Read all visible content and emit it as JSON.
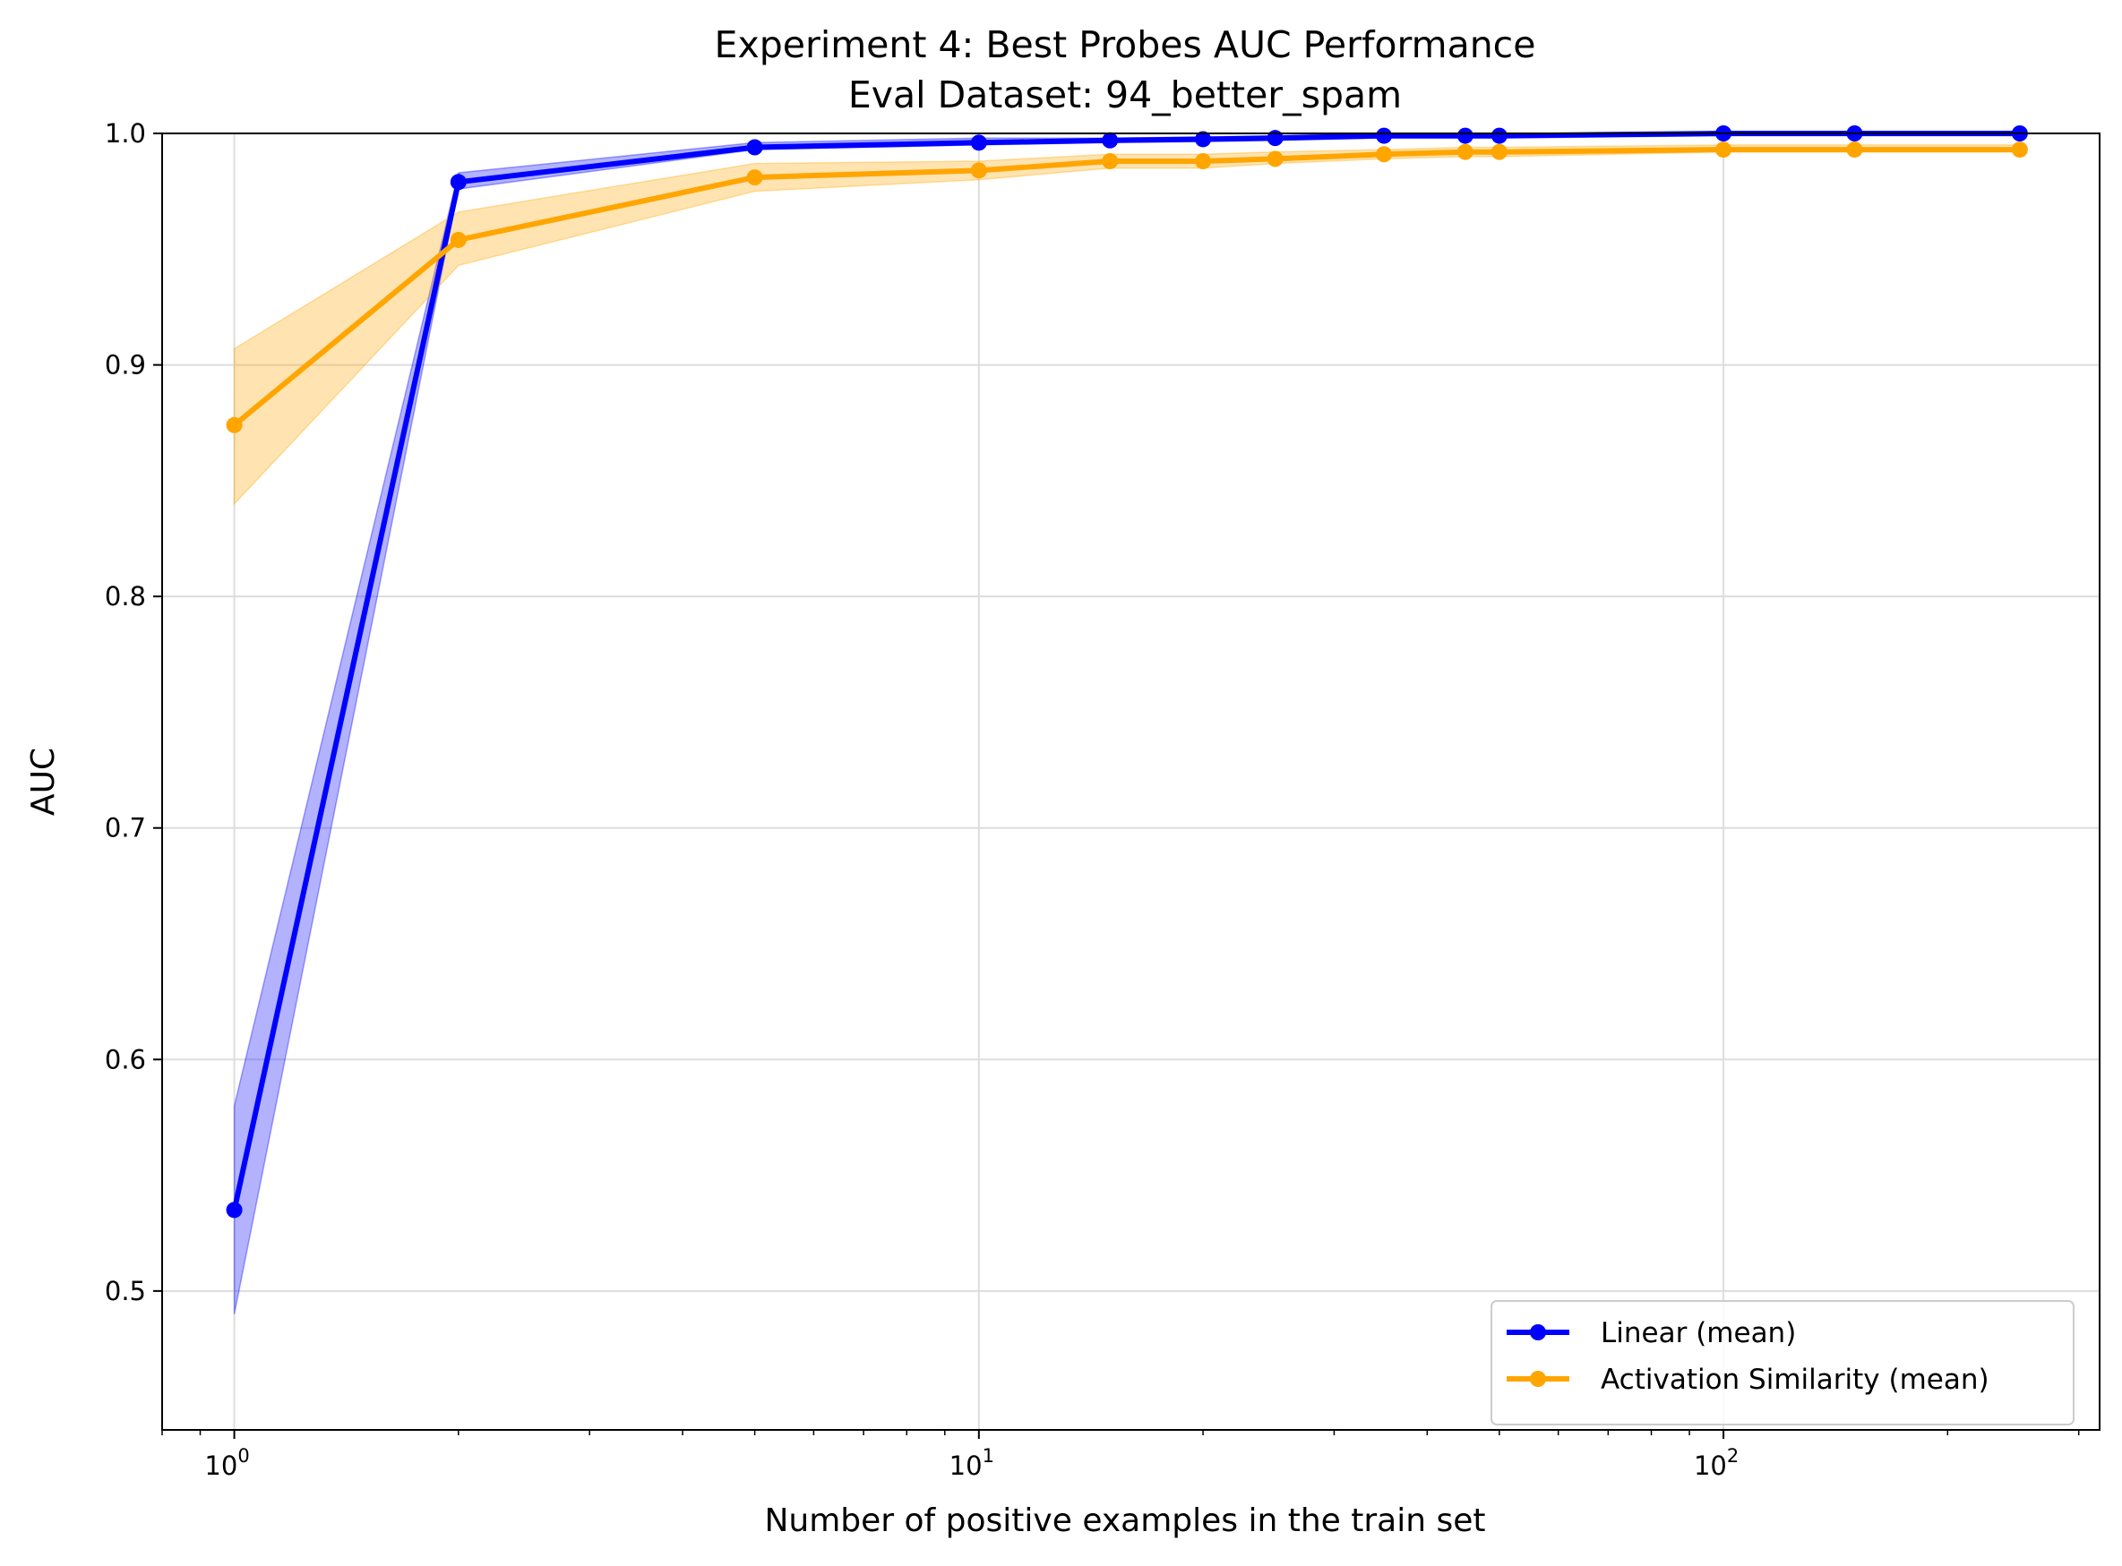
{
  "chart_data": {
    "type": "line",
    "title": "Experiment 4: Best Probes AUC Performance",
    "subtitle": "Eval Dataset: 94_better_spam",
    "xlabel": "Number of positive examples in the train set",
    "ylabel": "AUC",
    "xscale": "log",
    "xlim": [
      0.8,
      320
    ],
    "ylim": [
      0.44,
      1.0
    ],
    "grid": true,
    "legend_position": "lower-right",
    "yticks": [
      {
        "value": 0.5,
        "label": "0.5"
      },
      {
        "value": 0.6,
        "label": "0.6"
      },
      {
        "value": 0.7,
        "label": "0.7"
      },
      {
        "value": 0.8,
        "label": "0.8"
      },
      {
        "value": 0.9,
        "label": "0.9"
      },
      {
        "value": 1.0,
        "label": "1.0"
      }
    ],
    "xticks": [
      {
        "value": 1,
        "base": "10",
        "exp": "0"
      },
      {
        "value": 10,
        "base": "10",
        "exp": "1"
      },
      {
        "value": 100,
        "base": "10",
        "exp": "2"
      }
    ],
    "series": [
      {
        "name": "Linear (mean)",
        "color": "#0000ff",
        "x": [
          1,
          2,
          5,
          10,
          15,
          20,
          25,
          35,
          45,
          50,
          100,
          150,
          250
        ],
        "y": [
          0.535,
          0.979,
          0.994,
          0.996,
          0.997,
          0.9975,
          0.998,
          0.999,
          0.999,
          0.999,
          1.0,
          1.0,
          1.0
        ],
        "lower": [
          0.49,
          0.976,
          0.993,
          0.995,
          0.996,
          0.9965,
          0.997,
          0.998,
          0.998,
          0.998,
          0.999,
          0.999,
          0.999
        ],
        "upper": [
          0.58,
          0.983,
          0.996,
          0.998,
          0.998,
          0.9985,
          0.999,
          1.0,
          1.0,
          1.0,
          1.0,
          1.0,
          1.0
        ]
      },
      {
        "name": "Activation Similarity (mean)",
        "color": "#ffa500",
        "x": [
          1,
          2,
          5,
          10,
          15,
          20,
          25,
          35,
          45,
          50,
          100,
          150,
          250
        ],
        "y": [
          0.874,
          0.954,
          0.981,
          0.984,
          0.988,
          0.988,
          0.989,
          0.991,
          0.992,
          0.992,
          0.993,
          0.993,
          0.993
        ],
        "lower": [
          0.84,
          0.943,
          0.975,
          0.98,
          0.985,
          0.985,
          0.987,
          0.989,
          0.99,
          0.99,
          0.992,
          0.992,
          0.992
        ],
        "upper": [
          0.907,
          0.966,
          0.987,
          0.988,
          0.991,
          0.991,
          0.992,
          0.993,
          0.994,
          0.994,
          0.995,
          0.995,
          0.995
        ]
      }
    ]
  }
}
